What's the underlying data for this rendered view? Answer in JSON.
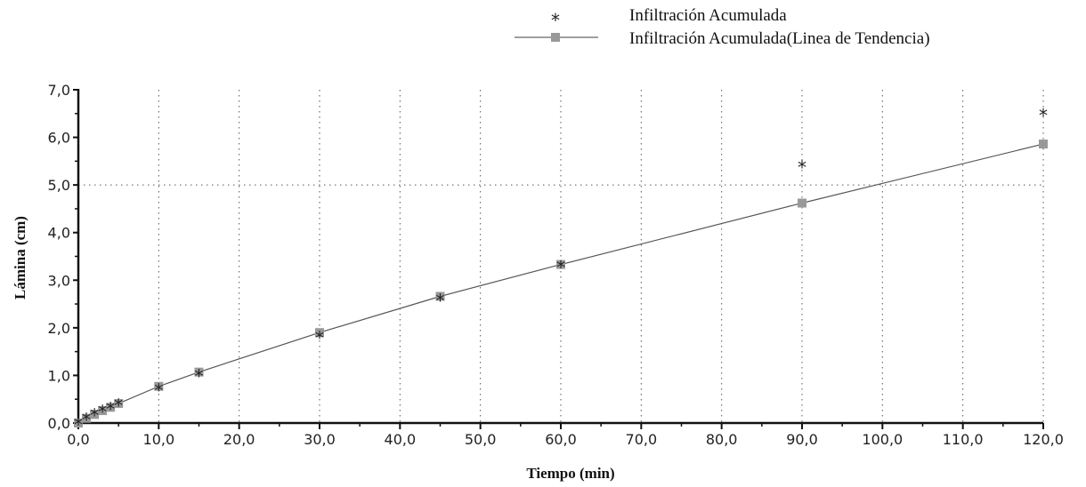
{
  "chart_data": {
    "type": "scatter",
    "title": "",
    "xlabel": "Tiempo (min)",
    "ylabel": "Lámina (cm)",
    "xlim": [
      0,
      120
    ],
    "ylim": [
      0,
      7
    ],
    "x_ticks": [
      "0,0",
      "10,0",
      "20,0",
      "30,0",
      "40,0",
      "50,0",
      "60,0",
      "70,0",
      "80,0",
      "90,0",
      "100,0",
      "110,0",
      "120,0"
    ],
    "y_ticks": [
      "0,0",
      "1,0",
      "2,0",
      "3,0",
      "4,0",
      "5,0",
      "6,0",
      "7,0"
    ],
    "grid": "dotted",
    "legend_position": "top-right",
    "series": [
      {
        "name": "Infiltración Acumulada",
        "marker": "asterisk",
        "color": "#222222",
        "x": [
          0,
          1,
          2,
          3,
          4,
          5,
          10,
          15,
          30,
          45,
          60,
          90,
          120
        ],
        "y": [
          0.0,
          0.1,
          0.2,
          0.27,
          0.33,
          0.4,
          0.72,
          1.02,
          1.82,
          2.6,
          3.3,
          5.4,
          6.5
        ]
      },
      {
        "name": "Infiltración Acumulada(Linea de Tendencia)",
        "marker": "square",
        "line": true,
        "color": "#999999",
        "x": [
          0,
          1,
          2,
          3,
          4,
          5,
          10,
          15,
          30,
          45,
          60,
          90,
          120
        ],
        "y": [
          0.0,
          0.1,
          0.18,
          0.26,
          0.33,
          0.41,
          0.77,
          1.07,
          1.9,
          2.66,
          3.33,
          4.62,
          5.86
        ]
      }
    ]
  }
}
